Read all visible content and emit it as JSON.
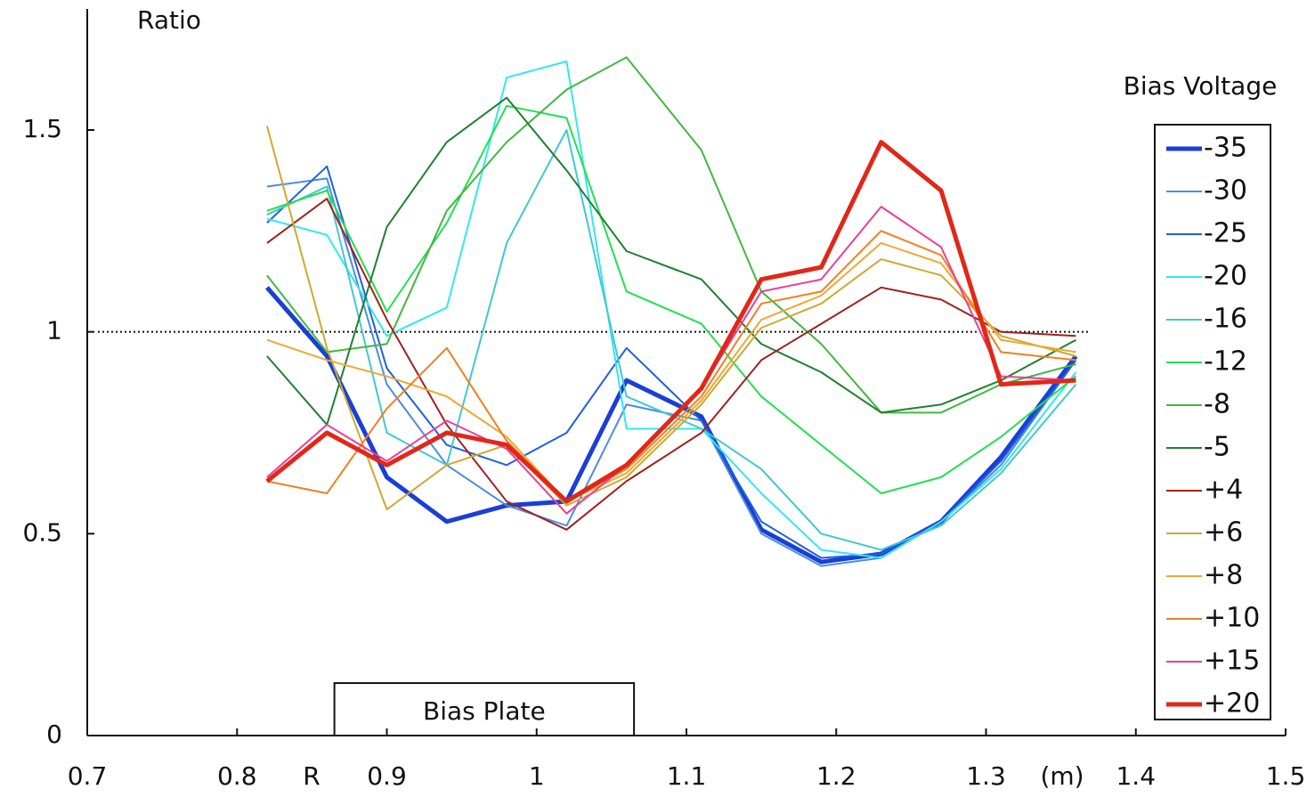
{
  "chart_data": {
    "type": "line",
    "y_label": "Ratio",
    "x_note": "R",
    "x_unit": "(m)",
    "legend_title": "Bias Voltage",
    "xlim": [
      0.7,
      1.5
    ],
    "xticks": [
      0.7,
      0.8,
      0.9,
      1,
      1.1,
      1.2,
      1.3,
      1.4,
      1.5
    ],
    "ylim": [
      0,
      1.8
    ],
    "yticks": [
      0,
      0.5,
      1,
      1.5
    ],
    "reference_line": 1,
    "plate": {
      "label": "Bias Plate",
      "x": [
        0.865,
        1.065
      ],
      "top": 0.13
    },
    "x": [
      0.82,
      0.86,
      0.9,
      0.94,
      0.98,
      1.02,
      1.06,
      1.11,
      1.15,
      1.19,
      1.23,
      1.27,
      1.31,
      1.36
    ],
    "series": [
      {
        "name": "-35",
        "color": "#1a3fd6",
        "width": 5,
        "values": [
          1.11,
          0.94,
          0.64,
          0.53,
          0.57,
          0.58,
          0.88,
          0.79,
          0.51,
          0.43,
          0.45,
          0.53,
          0.69,
          0.94
        ]
      },
      {
        "name": "-30",
        "color": "#4a8de0",
        "width": 2,
        "values": [
          1.36,
          1.38,
          0.87,
          0.67,
          0.57,
          0.52,
          0.82,
          0.78,
          0.5,
          0.42,
          0.44,
          0.53,
          0.67,
          0.93
        ]
      },
      {
        "name": "-25",
        "color": "#2060e0",
        "width": 2,
        "values": [
          1.27,
          1.41,
          0.91,
          0.72,
          0.67,
          0.75,
          0.96,
          0.78,
          0.53,
          0.44,
          0.45,
          0.53,
          0.68,
          0.93
        ]
      },
      {
        "name": "-20",
        "color": "#30e8f0",
        "width": 2,
        "values": [
          1.28,
          1.24,
          0.99,
          1.06,
          1.63,
          1.67,
          0.76,
          0.76,
          0.6,
          0.46,
          0.44,
          0.53,
          0.66,
          0.9
        ]
      },
      {
        "name": "-16",
        "color": "#40c8d0",
        "width": 2,
        "values": [
          1.29,
          1.36,
          0.75,
          0.67,
          1.22,
          1.5,
          0.84,
          0.76,
          0.66,
          0.5,
          0.46,
          0.52,
          0.65,
          0.87
        ]
      },
      {
        "name": "-12",
        "color": "#20e050",
        "width": 2,
        "values": [
          1.3,
          1.35,
          1.05,
          1.27,
          1.56,
          1.53,
          1.1,
          1.02,
          0.84,
          0.72,
          0.6,
          0.64,
          0.74,
          0.89
        ]
      },
      {
        "name": "-8",
        "color": "#40b840",
        "width": 2,
        "values": [
          1.14,
          0.95,
          0.97,
          1.3,
          1.47,
          1.6,
          1.68,
          1.45,
          1.1,
          0.97,
          0.8,
          0.8,
          0.87,
          0.92
        ]
      },
      {
        "name": "-5",
        "color": "#208030",
        "width": 2,
        "values": [
          0.94,
          0.77,
          1.26,
          1.47,
          1.58,
          1.4,
          1.2,
          1.13,
          0.97,
          0.9,
          0.8,
          0.82,
          0.88,
          0.98
        ]
      },
      {
        "name": "+4",
        "color": "#a02020",
        "width": 2,
        "values": [
          1.22,
          1.33,
          1.03,
          0.77,
          0.58,
          0.51,
          0.63,
          0.75,
          0.93,
          1.02,
          1.11,
          1.08,
          1.0,
          0.99
        ]
      },
      {
        "name": "+6",
        "color": "#d0a830",
        "width": 2,
        "values": [
          1.51,
          0.96,
          0.56,
          0.67,
          0.72,
          0.57,
          0.64,
          0.82,
          1.01,
          1.07,
          1.18,
          1.14,
          0.99,
          0.94
        ]
      },
      {
        "name": "+8",
        "color": "#f0a830",
        "width": 2,
        "values": [
          0.98,
          0.93,
          0.89,
          0.84,
          0.74,
          0.58,
          0.65,
          0.83,
          1.03,
          1.09,
          1.22,
          1.17,
          0.98,
          0.95
        ]
      },
      {
        "name": "+10",
        "color": "#f08020",
        "width": 2,
        "values": [
          0.63,
          0.6,
          0.81,
          0.96,
          0.73,
          0.58,
          0.66,
          0.84,
          1.07,
          1.1,
          1.25,
          1.19,
          0.95,
          0.93
        ]
      },
      {
        "name": "+15",
        "color": "#e84098",
        "width": 2,
        "values": [
          0.64,
          0.77,
          0.68,
          0.78,
          0.71,
          0.55,
          0.67,
          0.86,
          1.1,
          1.13,
          1.31,
          1.21,
          0.89,
          0.88
        ]
      },
      {
        "name": "+20",
        "color": "#e02818",
        "width": 5,
        "values": [
          0.63,
          0.75,
          0.67,
          0.75,
          0.72,
          0.58,
          0.67,
          0.86,
          1.13,
          1.16,
          1.47,
          1.35,
          0.87,
          0.88
        ]
      }
    ]
  }
}
